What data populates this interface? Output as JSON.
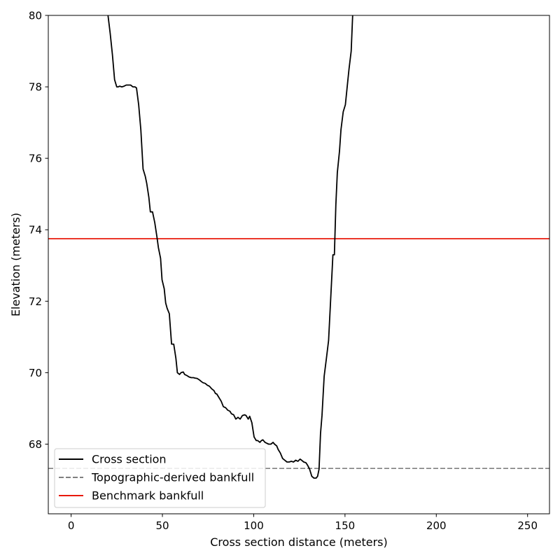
{
  "chart_data": {
    "type": "line",
    "title": "",
    "xlabel": "Cross section distance (meters)",
    "ylabel": "Elevation (meters)",
    "xlim": [
      -12.5,
      262
    ],
    "ylim": [
      66.05,
      80
    ],
    "xticks": [
      0,
      50,
      100,
      150,
      200,
      250
    ],
    "yticks": [
      68,
      70,
      72,
      74,
      76,
      78,
      80
    ],
    "grid": false,
    "legend_position": "lower-left",
    "series": [
      {
        "name": "Cross section",
        "color": "#000000",
        "style": "solid",
        "x": [
          18,
          20.2,
          21.4,
          22.6,
          23.8,
          25,
          25.8,
          26.6,
          27.8,
          29,
          30.2,
          31.4,
          32.6,
          33.8,
          35,
          35.8,
          37,
          38.2,
          39.4,
          40.6,
          41.4,
          42.6,
          43.4,
          44.6,
          45.8,
          47,
          47.8,
          49,
          49.8,
          51,
          51.8,
          52.6,
          53.8,
          55,
          56.2,
          57.4,
          58.2,
          59.4,
          60.2,
          61.4,
          62.2,
          63.4,
          64.6,
          65.8,
          67,
          67.8,
          69,
          70.2,
          71.4,
          72.2,
          73.4,
          74.6,
          75.8,
          77,
          78.2,
          79,
          79.8,
          81,
          82.2,
          83.4,
          84.6,
          85.8,
          87,
          87.8,
          89,
          90.2,
          91.4,
          92.6,
          93.8,
          95,
          95.8,
          97,
          97.8,
          99,
          100.2,
          101.4,
          102.2,
          103.4,
          104.2,
          105,
          106.2,
          107.4,
          108.2,
          109.4,
          110.6,
          111.4,
          112.6,
          113.4,
          114.6,
          115.8,
          117,
          118.2,
          119.4,
          120.6,
          121.8,
          123,
          124.2,
          125.4,
          126.2,
          127.4,
          128.6,
          129.4,
          130.6,
          131.8,
          133,
          134.2,
          135,
          135.8,
          136.6,
          137.4,
          138.6,
          139.8,
          141,
          142.2,
          143.4,
          144.2,
          145,
          145.8,
          147,
          147.8,
          149,
          150.2,
          151.4,
          152.2,
          153.4,
          154.2,
          156
        ],
        "y": [
          81,
          80,
          79.5,
          78.9,
          78.2,
          78,
          78,
          78.02,
          78,
          78.02,
          78.05,
          78.05,
          78.05,
          78,
          78,
          77.97,
          77.5,
          76.8,
          75.7,
          75.5,
          75.3,
          74.9,
          74.5,
          74.5,
          74.2,
          73.8,
          73.5,
          73.2,
          72.6,
          72.35,
          71.95,
          71.8,
          71.65,
          70.8,
          70.8,
          70.4,
          70,
          69.95,
          70,
          70.02,
          69.95,
          69.92,
          69.88,
          69.86,
          69.86,
          69.85,
          69.84,
          69.8,
          69.75,
          69.72,
          69.7,
          69.65,
          69.62,
          69.55,
          69.5,
          69.42,
          69.4,
          69.3,
          69.2,
          69.05,
          69.02,
          68.95,
          68.92,
          68.85,
          68.82,
          68.7,
          68.75,
          68.7,
          68.8,
          68.82,
          68.8,
          68.7,
          68.78,
          68.6,
          68.2,
          68.1,
          68.1,
          68.05,
          68.1,
          68.12,
          68.05,
          68.02,
          68,
          68,
          68.05,
          68,
          67.95,
          67.85,
          67.75,
          67.6,
          67.55,
          67.5,
          67.5,
          67.52,
          67.5,
          67.55,
          67.52,
          67.58,
          67.55,
          67.5,
          67.48,
          67.42,
          67.3,
          67.1,
          67.05,
          67.05,
          67.1,
          67.3,
          68.3,
          68.8,
          69.9,
          70.4,
          70.9,
          72.1,
          73.3,
          73.3,
          74.7,
          75.6,
          76.2,
          76.8,
          77.3,
          77.5,
          78.1,
          78.5,
          79,
          80,
          81
        ]
      },
      {
        "name": "Topographic-derived bankfull",
        "color": "#808080",
        "style": "dashed",
        "y": 67.32
      },
      {
        "name": "Benchmark bankfull",
        "color": "#e8190c",
        "style": "solid",
        "y": 73.75
      }
    ]
  }
}
